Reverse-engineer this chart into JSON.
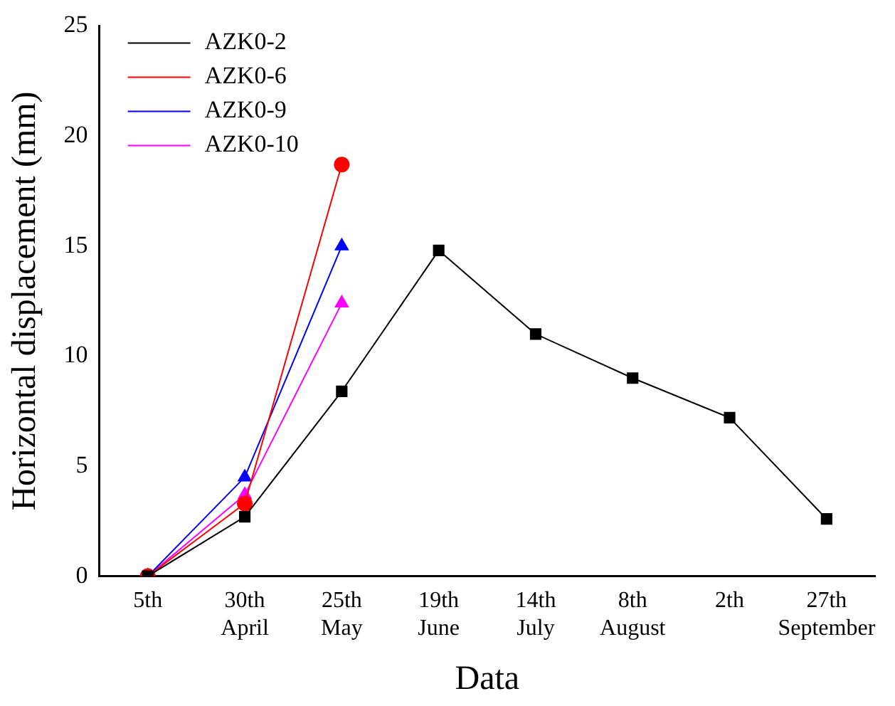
{
  "chart_data": {
    "type": "line",
    "xlabel": "Data",
    "ylabel": "Horizontal displacement (mm)",
    "categories": [
      "5th",
      "30th\nApril",
      "25th\nMay",
      "19th\nJune",
      "14th\nJuly",
      "8th\nAugust",
      "2th",
      "27th\nSeptember"
    ],
    "series": [
      {
        "name": "AZK0-2",
        "color": "#000000",
        "marker": "square",
        "values": [
          0,
          2.7,
          8.4,
          14.8,
          11,
          9,
          7.2,
          2.6
        ]
      },
      {
        "name": "AZK0-6",
        "color": "#ff0000",
        "marker": "circle",
        "values": [
          0,
          3.3,
          18.7,
          null,
          null,
          null,
          null,
          null
        ]
      },
      {
        "name": "AZK0-9",
        "color": "#0000ff",
        "marker": "triangle",
        "values": [
          0,
          4.5,
          15,
          null,
          null,
          null,
          null,
          null
        ]
      },
      {
        "name": "AZK0-10",
        "color": "#ff00ff",
        "marker": "triangle",
        "values": [
          0,
          3.7,
          12.4,
          null,
          null,
          null,
          null,
          null
        ]
      }
    ],
    "ylim": [
      0,
      25
    ],
    "yticks": [
      0,
      5,
      10,
      15,
      20,
      25
    ],
    "grid": false,
    "legend": "top left",
    "line_style": "solid"
  }
}
